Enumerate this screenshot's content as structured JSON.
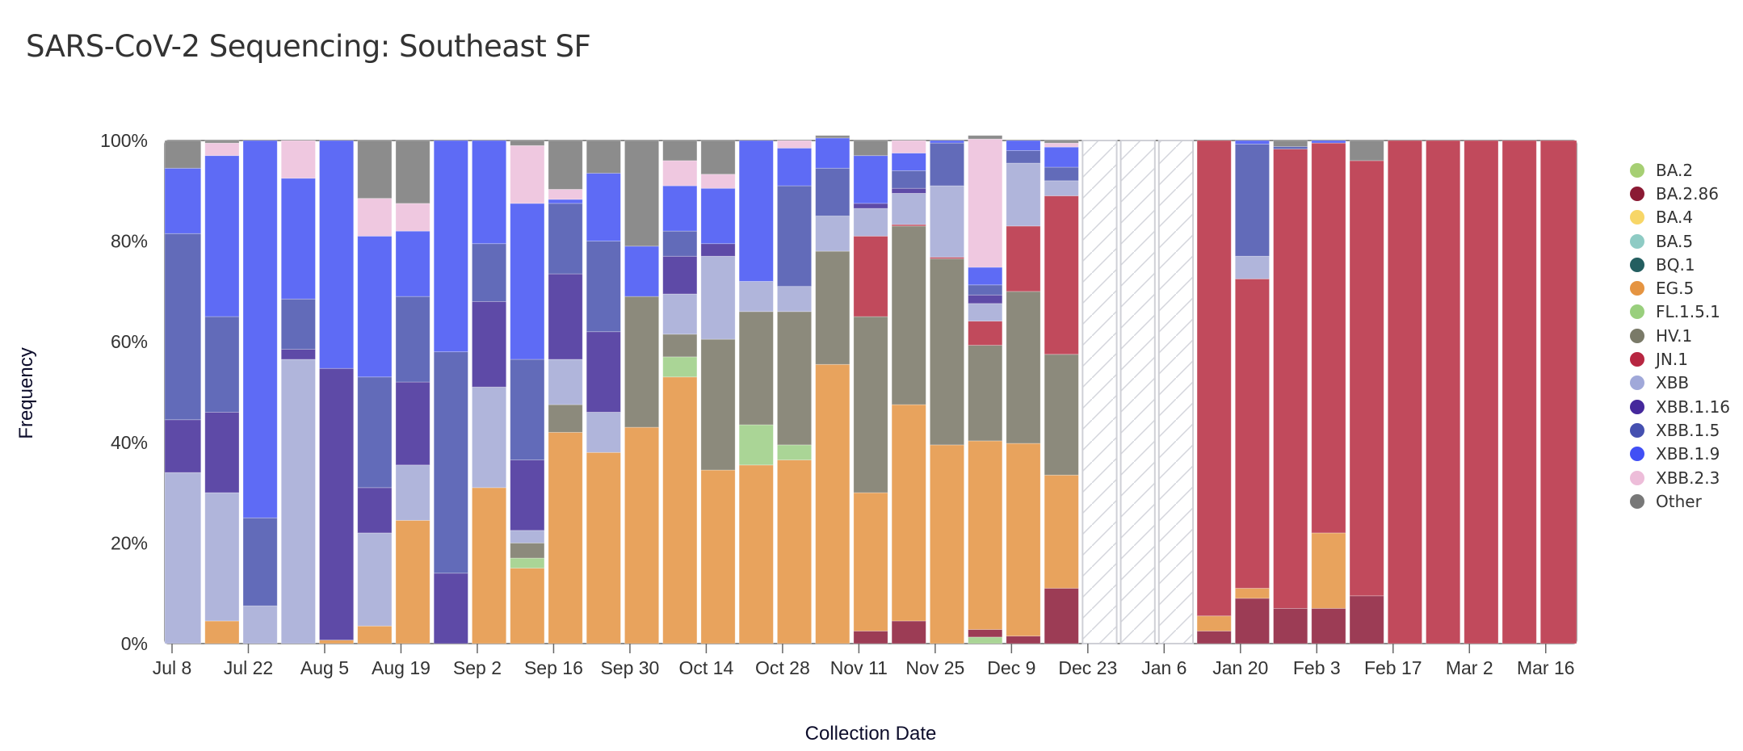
{
  "page": {
    "title": "SARS-CoV-2 Sequencing: Southeast SF"
  },
  "chart_data": {
    "type": "bar",
    "stacked": true,
    "normalized": true,
    "title": "SARS-CoV-2 Sequencing: Southeast SF",
    "xlabel": "Collection Date",
    "ylabel": "Frequency",
    "ylim": [
      0,
      100
    ],
    "y_ticks": [
      "0%",
      "20%",
      "40%",
      "60%",
      "80%",
      "100%"
    ],
    "x_ticks": [
      "Jul 8",
      "Jul 22",
      "Aug 5",
      "Aug 19",
      "Sep 2",
      "Sep 16",
      "Sep 30",
      "Oct 14",
      "Oct 28",
      "Nov 11",
      "Nov 25",
      "Dec 9",
      "Dec 23",
      "Jan 6",
      "Jan 20",
      "Feb 3",
      "Feb 17",
      "Mar 2",
      "Mar 16"
    ],
    "legend_position": "right",
    "lineages": [
      {
        "name": "BA.2",
        "color": "#a6cf73"
      },
      {
        "name": "BA.2.86",
        "color": "#8b1a34"
      },
      {
        "name": "BA.4",
        "color": "#f7d667"
      },
      {
        "name": "BA.5",
        "color": "#8ecbc4"
      },
      {
        "name": "BQ.1",
        "color": "#245e60"
      },
      {
        "name": "EG.5",
        "color": "#e59441"
      },
      {
        "name": "FL.1.5.1",
        "color": "#99cf7d"
      },
      {
        "name": "HV.1",
        "color": "#7a7a68"
      },
      {
        "name": "JN.1",
        "color": "#b72641"
      },
      {
        "name": "XBB",
        "color": "#a0a8d9"
      },
      {
        "name": "XBB.1.16",
        "color": "#45289c"
      },
      {
        "name": "XBB.1.5",
        "color": "#4550b0"
      },
      {
        "name": "XBB.1.9",
        "color": "#4150f5"
      },
      {
        "name": "XBB.2.3",
        "color": "#edbdd9"
      },
      {
        "name": "Other",
        "color": "#787878"
      }
    ],
    "bar_colors": {
      "BA.2": "#aad596",
      "BA.2.86": "#9c3c55",
      "EG.5": "#e8a35d",
      "FL.1.5.1": "#aad596",
      "HV.1": "#8c8a7c",
      "JN.1": "#c14a5c",
      "XBB": "#b0b5db",
      "XBB.1.16": "#5e4aa7",
      "XBB.1.5": "#626bb9",
      "XBB.1.9": "#5e6bf5",
      "XBB.2.3": "#efc8e0",
      "Other": "#8c8c8c"
    },
    "no_data_weeks": [
      "Dec 23",
      "Dec 30",
      "Jan 6"
    ],
    "weeks": [
      {
        "week": "Jul 8",
        "segments": [
          [
            "XBB",
            34
          ],
          [
            "XBB.1.16",
            10.5
          ],
          [
            "XBB.1.5",
            37
          ],
          [
            "XBB.1.9",
            13
          ],
          [
            "Other",
            5.5
          ]
        ]
      },
      {
        "week": "Jul 15",
        "segments": [
          [
            "EG.5",
            4.5
          ],
          [
            "XBB",
            25.5
          ],
          [
            "XBB.1.16",
            16
          ],
          [
            "XBB.1.5",
            19
          ],
          [
            "XBB.1.9",
            32
          ],
          [
            "XBB.2.3",
            2.5
          ],
          [
            "Other",
            0.5
          ]
        ]
      },
      {
        "week": "Jul 22",
        "segments": [
          [
            "XBB",
            7.5
          ],
          [
            "XBB.1.5",
            17.5
          ],
          [
            "XBB.1.9",
            75
          ]
        ]
      },
      {
        "week": "Jul 29",
        "segments": [
          [
            "XBB",
            56.5
          ],
          [
            "XBB.1.16",
            2
          ],
          [
            "XBB.1.5",
            10
          ],
          [
            "XBB.1.9",
            24
          ],
          [
            "XBB.2.3",
            7.5
          ]
        ]
      },
      {
        "week": "Aug 5",
        "segments": [
          [
            "EG.5",
            0.7
          ],
          [
            "XBB.1.16",
            54
          ],
          [
            "XBB.1.9",
            45.3
          ]
        ]
      },
      {
        "week": "Aug 12",
        "segments": [
          [
            "EG.5",
            3.5
          ],
          [
            "XBB",
            18.5
          ],
          [
            "XBB.1.16",
            9
          ],
          [
            "XBB.1.5",
            22
          ],
          [
            "XBB.1.9",
            28
          ],
          [
            "XBB.2.3",
            7.5
          ],
          [
            "Other",
            11.5
          ]
        ]
      },
      {
        "week": "Aug 19",
        "segments": [
          [
            "EG.5",
            24.5
          ],
          [
            "XBB",
            11
          ],
          [
            "XBB.1.16",
            16.5
          ],
          [
            "XBB.1.5",
            17
          ],
          [
            "XBB.1.9",
            13
          ],
          [
            "XBB.2.3",
            5.5
          ],
          [
            "Other",
            12.5
          ]
        ]
      },
      {
        "week": "Aug 26",
        "segments": [
          [
            "XBB.1.16",
            14
          ],
          [
            "XBB.1.5",
            44
          ],
          [
            "XBB.1.9",
            42
          ]
        ]
      },
      {
        "week": "Sep 2",
        "segments": [
          [
            "EG.5",
            31
          ],
          [
            "XBB",
            20
          ],
          [
            "XBB.1.16",
            17
          ],
          [
            "XBB.1.5",
            11.5
          ],
          [
            "XBB.1.9",
            20.5
          ]
        ]
      },
      {
        "week": "Sep 9",
        "segments": [
          [
            "EG.5",
            15
          ],
          [
            "FL.1.5.1",
            2
          ],
          [
            "HV.1",
            3
          ],
          [
            "XBB",
            2.5
          ],
          [
            "XBB.1.16",
            14
          ],
          [
            "XBB.1.5",
            20
          ],
          [
            "XBB.1.9",
            31
          ],
          [
            "XBB.2.3",
            11.5
          ],
          [
            "Other",
            1
          ]
        ]
      },
      {
        "week": "Sep 16",
        "segments": [
          [
            "EG.5",
            42
          ],
          [
            "HV.1",
            5.5
          ],
          [
            "XBB",
            9
          ],
          [
            "XBB.1.16",
            17
          ],
          [
            "XBB.1.5",
            14
          ],
          [
            "XBB.1.9",
            0.8
          ],
          [
            "XBB.2.3",
            2
          ],
          [
            "Other",
            9.7
          ]
        ]
      },
      {
        "week": "Sep 23",
        "segments": [
          [
            "EG.5",
            38
          ],
          [
            "XBB",
            8
          ],
          [
            "XBB.1.16",
            16
          ],
          [
            "XBB.1.5",
            18
          ],
          [
            "XBB.1.9",
            13.5
          ],
          [
            "Other",
            6.5
          ]
        ]
      },
      {
        "week": "Sep 30",
        "segments": [
          [
            "EG.5",
            43
          ],
          [
            "HV.1",
            26
          ],
          [
            "XBB.1.9",
            10
          ],
          [
            "Other",
            21
          ]
        ]
      },
      {
        "week": "Oct 7",
        "segments": [
          [
            "EG.5",
            53
          ],
          [
            "FL.1.5.1",
            4
          ],
          [
            "HV.1",
            4.5
          ],
          [
            "XBB",
            8
          ],
          [
            "XBB.1.16",
            7.5
          ],
          [
            "XBB.1.5",
            5
          ],
          [
            "XBB.1.9",
            9
          ],
          [
            "XBB.2.3",
            5
          ],
          [
            "Other",
            4
          ]
        ]
      },
      {
        "week": "Oct 14",
        "segments": [
          [
            "EG.5",
            34.5
          ],
          [
            "HV.1",
            26
          ],
          [
            "XBB",
            16.5
          ],
          [
            "XBB.1.16",
            2.5
          ],
          [
            "XBB.1.9",
            11
          ],
          [
            "XBB.2.3",
            2.8
          ],
          [
            "Other",
            6.7
          ]
        ]
      },
      {
        "week": "Oct 21",
        "segments": [
          [
            "EG.5",
            35.5
          ],
          [
            "FL.1.5.1",
            8
          ],
          [
            "HV.1",
            22.5
          ],
          [
            "XBB",
            6
          ],
          [
            "XBB.1.9",
            28
          ]
        ]
      },
      {
        "week": "Oct 28",
        "segments": [
          [
            "EG.5",
            36.5
          ],
          [
            "FL.1.5.1",
            3
          ],
          [
            "HV.1",
            26.5
          ],
          [
            "XBB",
            5
          ],
          [
            "XBB.1.5",
            20
          ],
          [
            "XBB.1.9",
            7.5
          ],
          [
            "XBB.2.3",
            1.5
          ]
        ]
      },
      {
        "week": "Nov 4",
        "segments": [
          [
            "EG.5",
            55.5
          ],
          [
            "HV.1",
            22.5
          ],
          [
            "XBB",
            7
          ],
          [
            "XBB.1.5",
            9.5
          ],
          [
            "XBB.1.9",
            6
          ],
          [
            "Other",
            0.5
          ]
        ]
      },
      {
        "week": "Nov 11",
        "segments": [
          [
            "BA.2.86",
            2.5
          ],
          [
            "EG.5",
            27.5
          ],
          [
            "HV.1",
            35
          ],
          [
            "JN.1",
            16
          ],
          [
            "XBB",
            5.5
          ],
          [
            "XBB.1.16",
            1
          ],
          [
            "XBB.1.9",
            9.5
          ],
          [
            "Other",
            3
          ]
        ]
      },
      {
        "week": "Nov 18",
        "segments": [
          [
            "BA.2.86",
            4.5
          ],
          [
            "EG.5",
            43
          ],
          [
            "HV.1",
            35.5
          ],
          [
            "JN.1",
            0.3
          ],
          [
            "XBB",
            6.2
          ],
          [
            "XBB.1.16",
            1
          ],
          [
            "XBB.1.5",
            3.5
          ],
          [
            "XBB.1.9",
            3.5
          ],
          [
            "XBB.2.3",
            2.5
          ]
        ]
      },
      {
        "week": "Nov 25",
        "segments": [
          [
            "EG.5",
            39.5
          ],
          [
            "HV.1",
            37
          ],
          [
            "JN.1",
            0.3
          ],
          [
            "XBB",
            14.2
          ],
          [
            "XBB.1.5",
            8.5
          ],
          [
            "XBB.1.9",
            0.5
          ]
        ]
      },
      {
        "week": "Dec 2",
        "segments": [
          [
            "BA.2",
            1.3
          ],
          [
            "BA.2.86",
            1.5
          ],
          [
            "EG.5",
            37.5
          ],
          [
            "HV.1",
            19
          ],
          [
            "JN.1",
            4.8
          ],
          [
            "XBB",
            3.5
          ],
          [
            "XBB.1.16",
            1.7
          ],
          [
            "XBB.1.5",
            2
          ],
          [
            "XBB.1.9",
            3.5
          ],
          [
            "XBB.2.3",
            25.5
          ],
          [
            "Other",
            0.7
          ]
        ]
      },
      {
        "week": "Dec 9",
        "segments": [
          [
            "BA.2.86",
            1.5
          ],
          [
            "EG.5",
            38.3
          ],
          [
            "HV.1",
            30.2
          ],
          [
            "JN.1",
            13
          ],
          [
            "XBB",
            12.5
          ],
          [
            "XBB.1.5",
            2.5
          ],
          [
            "XBB.1.9",
            2
          ]
        ]
      },
      {
        "week": "Dec 16",
        "segments": [
          [
            "BA.2.86",
            11
          ],
          [
            "EG.5",
            22.5
          ],
          [
            "HV.1",
            24
          ],
          [
            "JN.1",
            31.5
          ],
          [
            "XBB",
            3
          ],
          [
            "XBB.1.5",
            2.7
          ],
          [
            "XBB.1.9",
            4
          ],
          [
            "XBB.2.3",
            0.8
          ],
          [
            "Other",
            0.5
          ]
        ]
      },
      {
        "week": "Dec 23",
        "segments": []
      },
      {
        "week": "Dec 30",
        "segments": []
      },
      {
        "week": "Jan 6",
        "segments": []
      },
      {
        "week": "Jan 13",
        "segments": [
          [
            "BA.2.86",
            2.5
          ],
          [
            "EG.5",
            3
          ],
          [
            "JN.1",
            94.5
          ]
        ]
      },
      {
        "week": "Jan 20",
        "segments": [
          [
            "BA.2.86",
            9
          ],
          [
            "EG.5",
            2
          ],
          [
            "JN.1",
            61.5
          ],
          [
            "XBB",
            4.5
          ],
          [
            "XBB.1.5",
            22.3
          ],
          [
            "XBB.1.9",
            0.7
          ]
        ]
      },
      {
        "week": "Jan 27",
        "segments": [
          [
            "BA.2.86",
            7
          ],
          [
            "JN.1",
            91.3
          ],
          [
            "XBB.1.5",
            0.5
          ],
          [
            "Other",
            1.2
          ]
        ]
      },
      {
        "week": "Feb 3",
        "segments": [
          [
            "BA.2.86",
            7
          ],
          [
            "EG.5",
            15
          ],
          [
            "JN.1",
            77.5
          ],
          [
            "XBB.1.9",
            0.5
          ]
        ]
      },
      {
        "week": "Feb 10",
        "segments": [
          [
            "BA.2.86",
            9.5
          ],
          [
            "JN.1",
            86.5
          ],
          [
            "Other",
            4
          ]
        ]
      },
      {
        "week": "Feb 17",
        "segments": [
          [
            "JN.1",
            100
          ]
        ]
      },
      {
        "week": "Feb 24",
        "segments": [
          [
            "JN.1",
            100
          ]
        ]
      },
      {
        "week": "Mar 2",
        "segments": [
          [
            "JN.1",
            100
          ]
        ]
      },
      {
        "week": "Mar 9",
        "segments": [
          [
            "JN.1",
            100
          ]
        ]
      },
      {
        "week": "Mar 16",
        "segments": [
          [
            "JN.1",
            100
          ]
        ]
      }
    ]
  }
}
